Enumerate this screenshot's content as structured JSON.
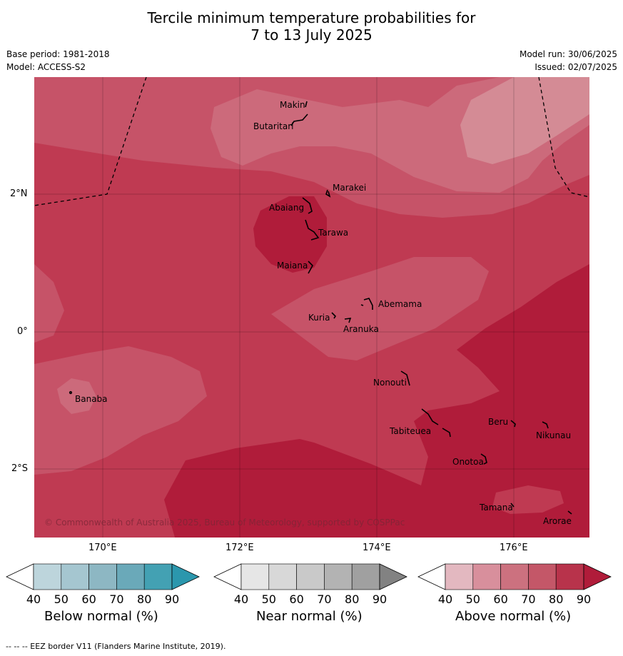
{
  "title_line1": "Tercile minimum temperature probabilities for",
  "title_line2": "7 to 13 July 2025",
  "meta_left": {
    "base_period": "Base period: 1981-2018",
    "model": "Model: ACCESS-S2"
  },
  "meta_right": {
    "model_run": "Model run: 30/06/2025",
    "issued": "Issued: 02/07/2025"
  },
  "lat_labels": [
    "2°N",
    "0°",
    "2°S"
  ],
  "lon_labels": [
    "170°E",
    "172°E",
    "174°E",
    "176°E"
  ],
  "places": [
    "Makin",
    "Butaritari",
    "Marakei",
    "Abaiang",
    "Tarawa",
    "Maiana",
    "Abemama",
    "Kuria",
    "Aranuka",
    "Banaba",
    "Nonouti",
    "Beru",
    "Nikunau",
    "Tabiteuea",
    "Onotoa",
    "Tamana",
    "Arorae"
  ],
  "copyright": "© Commonwealth of Australia 2025, Bureau of Meteorology, supported by COSPPac",
  "colorbars": [
    {
      "label": "Below normal (%)",
      "ticks": [
        "40",
        "50",
        "60",
        "70",
        "80",
        "90"
      ],
      "colors": [
        "#ffffff",
        "#bdd5dc",
        "#a5c6d0",
        "#8db7c3",
        "#6aa9b9",
        "#43a1b3",
        "#2b97ad"
      ]
    },
    {
      "label": "Near normal (%)",
      "ticks": [
        "40",
        "50",
        "60",
        "70",
        "80",
        "90"
      ],
      "colors": [
        "#ffffff",
        "#e6e6e6",
        "#d8d8d8",
        "#c9c9c9",
        "#b3b3b3",
        "#a0a0a0",
        "#828282"
      ]
    },
    {
      "label": "Above normal (%)",
      "ticks": [
        "40",
        "50",
        "60",
        "70",
        "80",
        "90"
      ],
      "colors": [
        "#ffffff",
        "#e3b8c0",
        "#d88f9c",
        "#cc717f",
        "#c45768",
        "#b8334b",
        "#b01c3a"
      ]
    }
  ],
  "footer": "--  --  -- EEZ border V11 (Flanders Marine Institute, 2019)."
}
